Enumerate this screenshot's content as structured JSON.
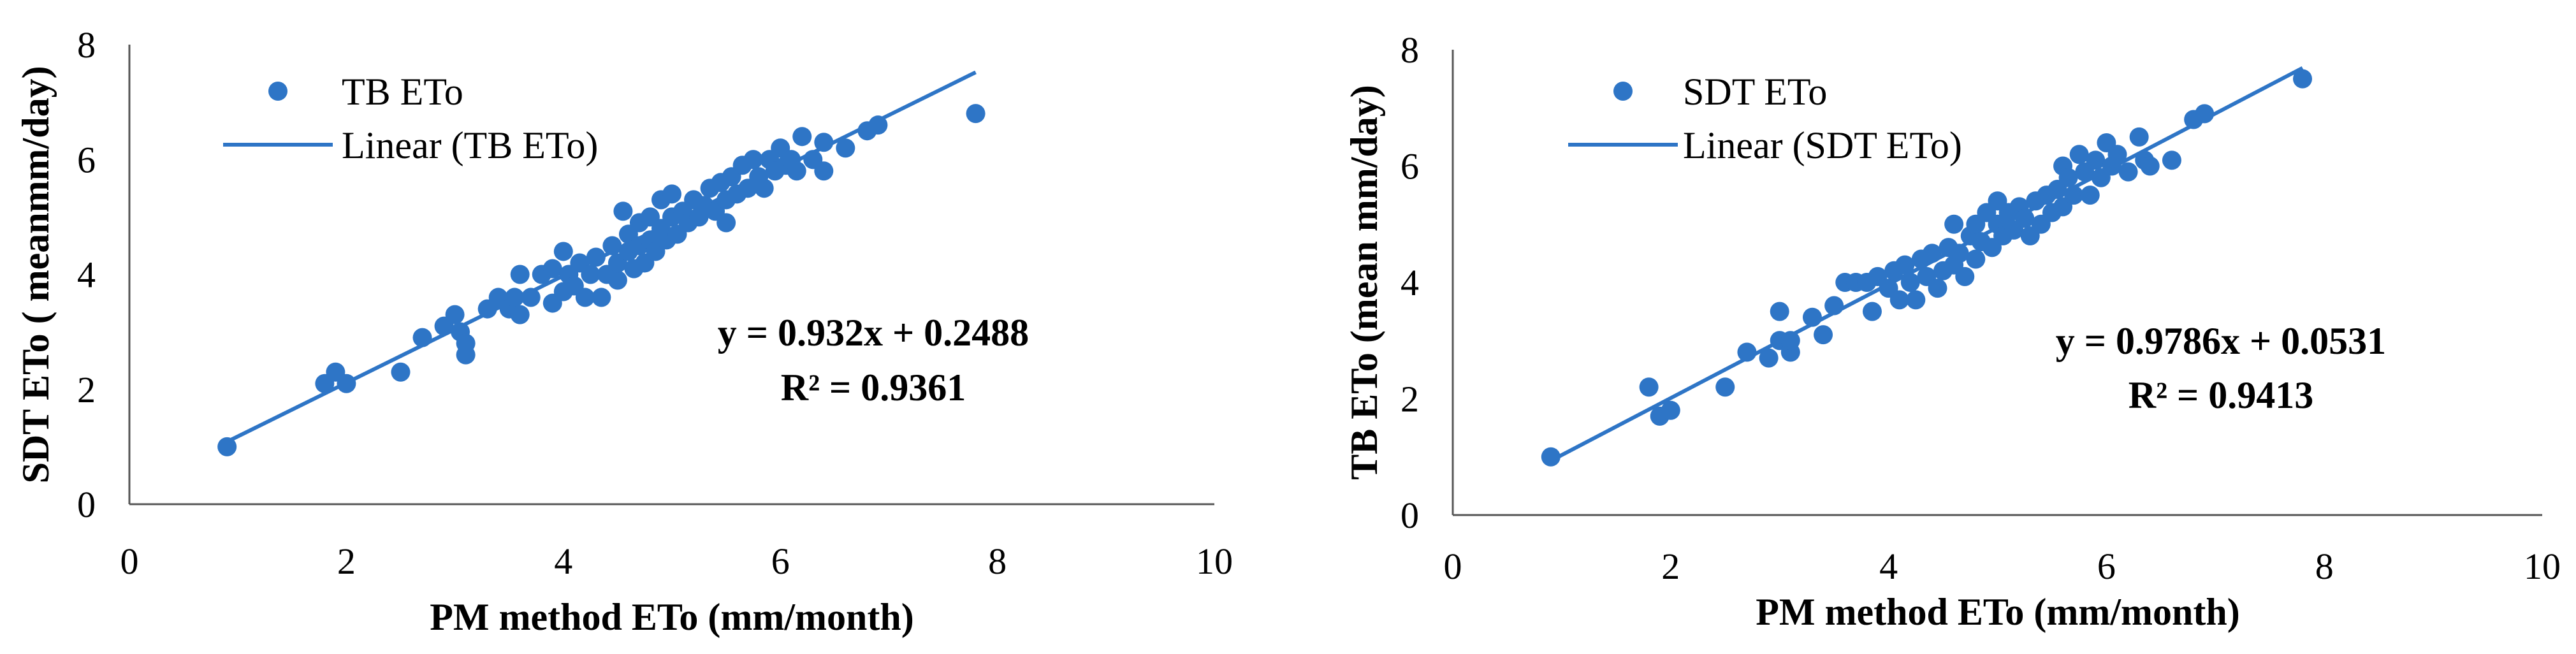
{
  "chart_data": [
    {
      "type": "scatter",
      "title": "",
      "xlabel": "PM method ETo (mm/month)",
      "ylabel": "SDT ETo ( meanmm/day)",
      "xlim": [
        0,
        10
      ],
      "ylim": [
        0,
        8
      ],
      "xticks": [
        "0",
        "2",
        "4",
        "6",
        "8",
        "10"
      ],
      "yticks": [
        "0",
        "2",
        "4",
        "6",
        "8"
      ],
      "grid": false,
      "legend_position": "top-left",
      "series": [
        {
          "name": "TB ETo",
          "color": "#2E75C6",
          "marker": "circle",
          "points": [
            [
              0.9,
              1.0
            ],
            [
              1.8,
              2.1
            ],
            [
              1.9,
              2.3
            ],
            [
              2.0,
              2.1
            ],
            [
              2.5,
              2.3
            ],
            [
              2.7,
              2.9
            ],
            [
              2.9,
              3.1
            ],
            [
              3.0,
              3.3
            ],
            [
              3.05,
              3.0
            ],
            [
              3.1,
              2.6
            ],
            [
              3.1,
              2.8
            ],
            [
              3.3,
              3.4
            ],
            [
              3.4,
              3.6
            ],
            [
              3.5,
              3.4
            ],
            [
              3.55,
              3.6
            ],
            [
              3.6,
              3.3
            ],
            [
              3.6,
              4.0
            ],
            [
              3.7,
              3.6
            ],
            [
              3.8,
              4.0
            ],
            [
              3.9,
              3.5
            ],
            [
              3.9,
              4.1
            ],
            [
              4.0,
              3.7
            ],
            [
              4.0,
              4.4
            ],
            [
              4.05,
              4.0
            ],
            [
              4.1,
              3.8
            ],
            [
              4.15,
              4.2
            ],
            [
              4.2,
              3.6
            ],
            [
              4.25,
              4.0
            ],
            [
              4.3,
              4.3
            ],
            [
              4.35,
              3.6
            ],
            [
              4.4,
              4.0
            ],
            [
              4.45,
              4.5
            ],
            [
              4.5,
              3.9
            ],
            [
              4.5,
              4.2
            ],
            [
              4.55,
              5.1
            ],
            [
              4.6,
              4.4
            ],
            [
              4.6,
              4.7
            ],
            [
              4.65,
              4.1
            ],
            [
              4.7,
              4.5
            ],
            [
              4.7,
              4.9
            ],
            [
              4.75,
              4.2
            ],
            [
              4.8,
              4.6
            ],
            [
              4.8,
              5.0
            ],
            [
              4.85,
              4.4
            ],
            [
              4.9,
              4.8
            ],
            [
              4.9,
              5.3
            ],
            [
              4.95,
              4.6
            ],
            [
              5.0,
              5.0
            ],
            [
              5.0,
              5.4
            ],
            [
              5.05,
              4.7
            ],
            [
              5.1,
              5.1
            ],
            [
              5.15,
              4.9
            ],
            [
              5.2,
              5.3
            ],
            [
              5.25,
              5.0
            ],
            [
              5.3,
              5.2
            ],
            [
              5.35,
              5.5
            ],
            [
              5.4,
              5.1
            ],
            [
              5.45,
              5.6
            ],
            [
              5.5,
              5.3
            ],
            [
              5.5,
              4.9
            ],
            [
              5.55,
              5.7
            ],
            [
              5.6,
              5.4
            ],
            [
              5.65,
              5.9
            ],
            [
              5.7,
              5.5
            ],
            [
              5.75,
              6.0
            ],
            [
              5.8,
              5.7
            ],
            [
              5.85,
              5.5
            ],
            [
              5.9,
              6.0
            ],
            [
              5.95,
              5.8
            ],
            [
              6.0,
              6.2
            ],
            [
              6.05,
              5.9
            ],
            [
              6.1,
              6.0
            ],
            [
              6.15,
              5.8
            ],
            [
              6.2,
              6.4
            ],
            [
              6.3,
              6.0
            ],
            [
              6.4,
              5.8
            ],
            [
              6.4,
              6.3
            ],
            [
              6.6,
              6.2
            ],
            [
              6.8,
              6.5
            ],
            [
              6.9,
              6.6
            ],
            [
              7.8,
              6.8
            ]
          ]
        },
        {
          "name": "Linear (TB ETo)",
          "color": "#2E75C6",
          "type": "line",
          "slope": 0.932,
          "intercept": 0.2488,
          "x_range": [
            0.9,
            7.8
          ]
        }
      ],
      "annotations": {
        "equation": "y = 0.932x + 0.2488",
        "r2": "R² = 0.9361"
      }
    },
    {
      "type": "scatter",
      "title": "",
      "xlabel": "PM method ETo (mm/month)",
      "ylabel": "TB ETo (mean mm/day)",
      "xlim": [
        0,
        10
      ],
      "ylim": [
        0,
        8
      ],
      "xticks": [
        "0",
        "2",
        "4",
        "6",
        "8",
        "10"
      ],
      "yticks": [
        "0",
        "2",
        "4",
        "6",
        "8"
      ],
      "grid": false,
      "legend_position": "top-left",
      "series": [
        {
          "name": "SDT ETo",
          "color": "#2E75C6",
          "marker": "circle",
          "points": [
            [
              0.9,
              1.0
            ],
            [
              1.8,
              2.2
            ],
            [
              1.9,
              1.7
            ],
            [
              2.0,
              1.8
            ],
            [
              2.5,
              2.2
            ],
            [
              2.7,
              2.8
            ],
            [
              2.9,
              2.7
            ],
            [
              3.0,
              3.5
            ],
            [
              3.0,
              3.0
            ],
            [
              3.1,
              2.8
            ],
            [
              3.1,
              3.0
            ],
            [
              3.3,
              3.4
            ],
            [
              3.4,
              3.1
            ],
            [
              3.5,
              3.6
            ],
            [
              3.6,
              4.0
            ],
            [
              3.7,
              4.0
            ],
            [
              3.8,
              4.0
            ],
            [
              3.85,
              3.5
            ],
            [
              3.9,
              4.1
            ],
            [
              4.0,
              3.9
            ],
            [
              4.05,
              4.2
            ],
            [
              4.1,
              3.7
            ],
            [
              4.15,
              4.3
            ],
            [
              4.2,
              4.0
            ],
            [
              4.25,
              3.7
            ],
            [
              4.3,
              4.4
            ],
            [
              4.35,
              4.1
            ],
            [
              4.4,
              4.5
            ],
            [
              4.45,
              3.9
            ],
            [
              4.5,
              4.2
            ],
            [
              4.55,
              4.6
            ],
            [
              4.6,
              4.3
            ],
            [
              4.6,
              5.0
            ],
            [
              4.65,
              4.5
            ],
            [
              4.7,
              4.1
            ],
            [
              4.75,
              4.8
            ],
            [
              4.8,
              4.4
            ],
            [
              4.8,
              5.0
            ],
            [
              4.85,
              4.7
            ],
            [
              4.9,
              5.2
            ],
            [
              4.95,
              4.6
            ],
            [
              5.0,
              5.0
            ],
            [
              5.0,
              5.4
            ],
            [
              5.05,
              4.8
            ],
            [
              5.1,
              5.2
            ],
            [
              5.15,
              4.9
            ],
            [
              5.2,
              5.3
            ],
            [
              5.25,
              5.1
            ],
            [
              5.3,
              4.8
            ],
            [
              5.35,
              5.4
            ],
            [
              5.4,
              5.0
            ],
            [
              5.45,
              5.5
            ],
            [
              5.5,
              5.2
            ],
            [
              5.55,
              5.6
            ],
            [
              5.6,
              5.3
            ],
            [
              5.6,
              6.0
            ],
            [
              5.65,
              5.8
            ],
            [
              5.7,
              5.5
            ],
            [
              5.75,
              6.2
            ],
            [
              5.8,
              5.9
            ],
            [
              5.85,
              5.5
            ],
            [
              5.9,
              6.1
            ],
            [
              5.95,
              5.8
            ],
            [
              6.0,
              6.4
            ],
            [
              6.05,
              6.0
            ],
            [
              6.1,
              6.2
            ],
            [
              6.2,
              5.9
            ],
            [
              6.3,
              6.5
            ],
            [
              6.35,
              6.1
            ],
            [
              6.4,
              6.0
            ],
            [
              6.6,
              6.1
            ],
            [
              6.8,
              6.8
            ],
            [
              6.9,
              6.9
            ],
            [
              7.8,
              7.5
            ]
          ]
        },
        {
          "name": "Linear (SDT ETo)",
          "color": "#2E75C6",
          "type": "line",
          "slope": 0.9786,
          "intercept": 0.0531,
          "x_range": [
            0.9,
            7.8
          ]
        }
      ],
      "annotations": {
        "equation": "y = 0.9786x + 0.0531",
        "r2": "R² = 0.9413"
      }
    }
  ]
}
